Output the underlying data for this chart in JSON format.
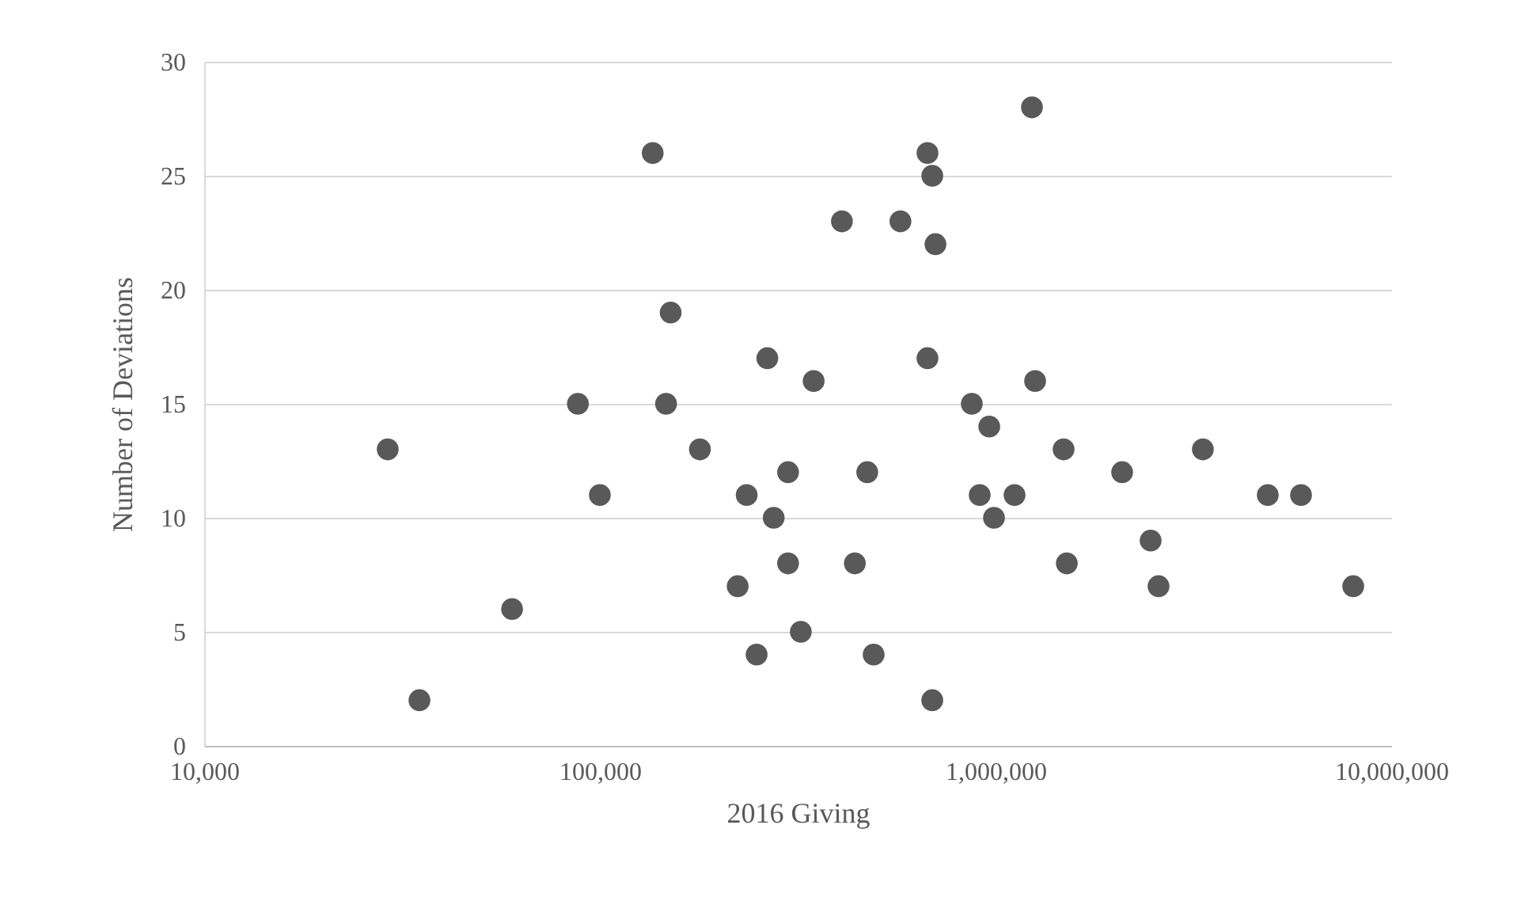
{
  "chart_data": {
    "type": "scatter",
    "xlabel": "2016 Giving",
    "ylabel": "Number of Deviations",
    "log": "x",
    "grid": "y",
    "marker": "circle",
    "xlim": [
      10000,
      10000000
    ],
    "xticks": [
      {
        "value": 10000,
        "label": "10,000"
      },
      {
        "value": 100000,
        "label": "100,000"
      },
      {
        "value": 1000000,
        "label": "1,000,000"
      },
      {
        "value": 10000000,
        "label": "10,000,000"
      }
    ],
    "ylim": [
      0,
      30
    ],
    "yticks": [
      0,
      5,
      10,
      15,
      20,
      25,
      30
    ],
    "x": [
      29100,
      35000,
      60000,
      88000,
      100000,
      136000,
      147000,
      151000,
      179000,
      223000,
      235000,
      249000,
      265000,
      275000,
      299000,
      299000,
      322000,
      347000,
      409000,
      441000,
      474000,
      492000,
      575000,
      673000,
      673000,
      692000,
      692000,
      705000,
      871000,
      912000,
      964000,
      991000,
      1236000,
      1117000,
      1259000,
      1486000,
      1514000,
      2089000,
      2466000,
      2582000,
      3342000,
      4875000,
      5916000,
      8017000
    ],
    "series": [
      {
        "color": "#595959",
        "values": [
          13,
          2,
          6,
          15,
          11,
          26,
          15,
          19,
          13,
          7,
          11,
          4,
          17,
          10,
          12,
          8,
          5,
          16,
          23,
          8,
          12,
          4,
          23,
          26,
          17,
          25,
          2,
          22,
          15,
          11,
          14,
          10,
          28,
          11,
          16,
          13,
          8,
          12,
          9,
          7,
          13,
          11,
          11,
          7
        ]
      }
    ]
  }
}
